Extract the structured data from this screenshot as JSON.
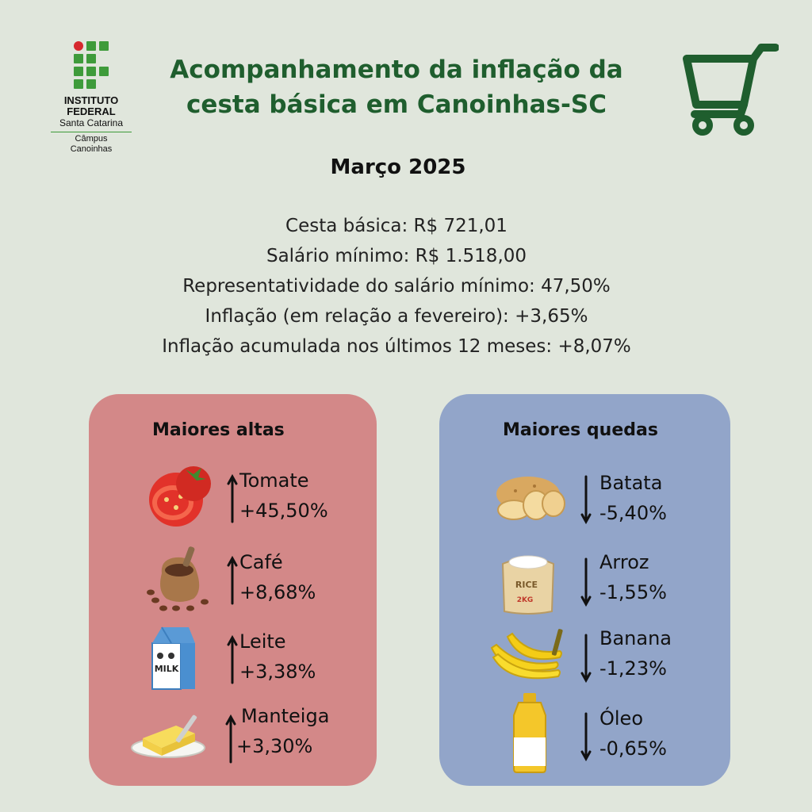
{
  "logo": {
    "name_line1": "INSTITUTO",
    "name_line2": "FEDERAL",
    "state": "Santa Catarina",
    "campus": "Câmpus",
    "city": "Canoinhas"
  },
  "header": {
    "title_line1": "Acompanhamento da inflação da",
    "title_line2": "cesta básica em Canoinhas-SC",
    "icon": "shopping-cart-icon"
  },
  "period": "Março 2025",
  "stats": [
    "Cesta básica: R$ 721,01",
    "Salário mínimo: R$ 1.518,00",
    "Representatividade do salário mínimo: 47,50%",
    "Inflação (em relação a fevereiro): +3,65%",
    "Inflação acumulada nos últimos 12 meses: +8,07%"
  ],
  "highs": {
    "title": "Maiores altas",
    "arrow_icon": "arrow-up-icon",
    "items": [
      {
        "name": "Tomate",
        "change": "+45,50%",
        "icon": "tomato-icon"
      },
      {
        "name": "Café",
        "change": "+8,68%",
        "icon": "coffee-beans-icon"
      },
      {
        "name": "Leite",
        "change": "+3,38%",
        "icon": "milk-carton-icon"
      },
      {
        "name": "Manteiga",
        "change": "+3,30%",
        "icon": "butter-icon"
      }
    ]
  },
  "lows": {
    "title": "Maiores quedas",
    "arrow_icon": "arrow-down-icon",
    "items": [
      {
        "name": "Batata",
        "change": "-5,40%",
        "icon": "potato-icon"
      },
      {
        "name": "Arroz",
        "change": "-1,55%",
        "icon": "rice-bag-icon"
      },
      {
        "name": "Banana",
        "change": "-1,23%",
        "icon": "banana-icon"
      },
      {
        "name": "Óleo",
        "change": "-0,65%",
        "icon": "oil-bottle-icon"
      }
    ]
  },
  "rice_bag_label": "RICE",
  "rice_bag_weight": "2KG",
  "milk_label": "MILK",
  "colors": {
    "background": "#e0e6dc",
    "title_green": "#1f5e2e",
    "highs_panel": "#d38888",
    "lows_panel": "#92a5c9",
    "logo_green": "#3e9b3a",
    "logo_red": "#d6282e"
  }
}
